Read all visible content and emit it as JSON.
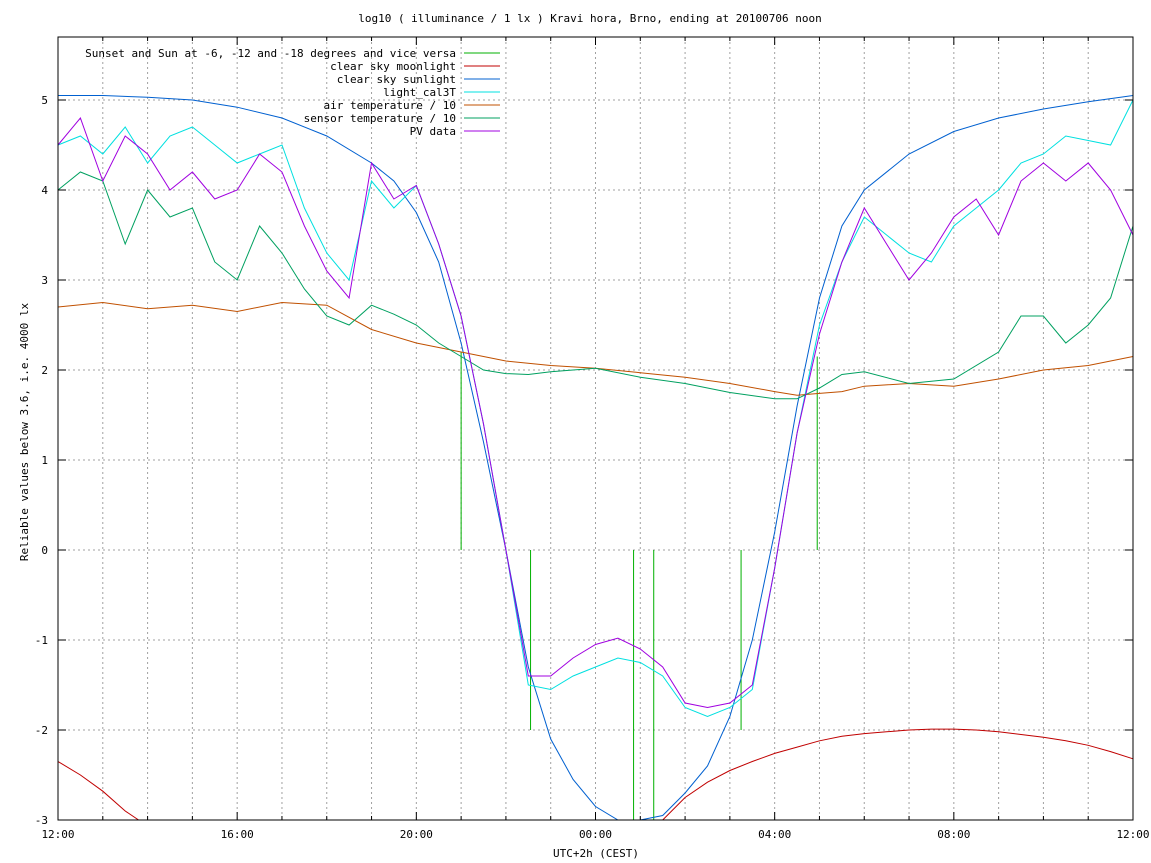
{
  "chart_data": {
    "type": "line",
    "title": "log10 ( illuminance / 1 lx ) Kravi hora, Brno, ending at 20100706 noon",
    "xlabel": "UTC+2h (CEST)",
    "ylabel": "Reliable values below 3.6, i.e. 4000 lx",
    "xlim": [
      12,
      36
    ],
    "ylim": [
      -3,
      5.7
    ],
    "x_ticks": [
      {
        "value": 12,
        "label": "12:00"
      },
      {
        "value": 16,
        "label": "16:00"
      },
      {
        "value": 20,
        "label": "20:00"
      },
      {
        "value": 24,
        "label": "00:00"
      },
      {
        "value": 28,
        "label": "04:00"
      },
      {
        "value": 32,
        "label": "08:00"
      },
      {
        "value": 36,
        "label": "12:00"
      }
    ],
    "y_ticks": [
      {
        "value": -3,
        "label": "-3"
      },
      {
        "value": -2,
        "label": "-2"
      },
      {
        "value": -1,
        "label": "-1"
      },
      {
        "value": 0,
        "label": "0"
      },
      {
        "value": 1,
        "label": "1"
      },
      {
        "value": 2,
        "label": "2"
      },
      {
        "value": 3,
        "label": "3"
      },
      {
        "value": 4,
        "label": "4"
      },
      {
        "value": 5,
        "label": "5"
      }
    ],
    "grid": true,
    "legend_position": "top-left",
    "series": [
      {
        "name": "Sunset and Sun at -6, -12 and -18 degrees and vice versa",
        "color": "#00b000",
        "style": "impulses",
        "x": [
          21.0,
          21.75,
          22.55,
          24.85,
          25.3,
          27.25,
          28.25,
          28.95
        ],
        "y": [
          2.2,
          0.0,
          -2.0,
          -3.0,
          -3.0,
          -2.0,
          0.0,
          2.15
        ]
      },
      {
        "name": "clear sky moonlight",
        "color": "#c00000",
        "style": "line",
        "x": [
          12.0,
          12.5,
          13.0,
          13.5,
          13.8,
          25.5,
          26.0,
          26.5,
          27.0,
          27.5,
          28.0,
          28.5,
          29.0,
          29.5,
          30.0,
          30.5,
          31.0,
          31.5,
          32.0,
          32.5,
          33.0,
          33.5,
          34.0,
          34.5,
          35.0,
          35.5,
          36.0
        ],
        "y": [
          -2.35,
          -2.5,
          -2.68,
          -2.9,
          -3.0,
          -3.0,
          -2.75,
          -2.58,
          -2.45,
          -2.35,
          -2.26,
          -2.19,
          -2.12,
          -2.07,
          -2.04,
          -2.02,
          -2.0,
          -1.99,
          -1.99,
          -2.0,
          -2.02,
          -2.05,
          -2.08,
          -2.12,
          -2.17,
          -2.24,
          -2.32
        ]
      },
      {
        "name": "clear sky sunlight",
        "color": "#0060d0",
        "style": "line",
        "x": [
          12.0,
          13.0,
          14.0,
          15.0,
          16.0,
          17.0,
          18.0,
          19.0,
          19.5,
          20.0,
          20.5,
          21.0,
          21.5,
          22.0,
          22.5,
          23.0,
          23.5,
          24.0,
          24.5,
          25.0,
          25.5,
          26.0,
          26.5,
          27.0,
          27.5,
          28.0,
          28.5,
          29.0,
          29.5,
          30.0,
          31.0,
          32.0,
          33.0,
          34.0,
          35.0,
          36.0
        ],
        "y": [
          5.05,
          5.05,
          5.03,
          5.0,
          4.92,
          4.8,
          4.6,
          4.3,
          4.1,
          3.75,
          3.2,
          2.3,
          1.2,
          0.0,
          -1.3,
          -2.1,
          -2.55,
          -2.85,
          -3.0,
          -3.0,
          -2.95,
          -2.7,
          -2.4,
          -1.85,
          -1.0,
          0.2,
          1.6,
          2.8,
          3.6,
          4.0,
          4.4,
          4.65,
          4.8,
          4.9,
          4.98,
          5.05
        ]
      },
      {
        "name": "light_cal3T",
        "color": "#00e0e0",
        "style": "line",
        "x": [
          12.0,
          12.5,
          13.0,
          13.5,
          14.0,
          14.5,
          15.0,
          15.5,
          16.0,
          16.5,
          17.0,
          17.5,
          18.0,
          18.5,
          19.0,
          19.5,
          20.0,
          20.5,
          21.0,
          21.5,
          22.0,
          22.5,
          23.0,
          23.5,
          24.0,
          24.5,
          25.0,
          25.5,
          26.0,
          26.5,
          27.0,
          27.5,
          28.0,
          28.5,
          29.0,
          29.5,
          30.0,
          30.5,
          31.0,
          31.5,
          32.0,
          32.5,
          33.0,
          33.5,
          34.0,
          34.5,
          35.0,
          35.5,
          36.0
        ],
        "y": [
          4.5,
          4.6,
          4.4,
          4.7,
          4.3,
          4.6,
          4.7,
          4.5,
          4.3,
          4.4,
          4.5,
          3.8,
          3.3,
          3.0,
          4.1,
          3.8,
          4.05,
          3.4,
          2.6,
          1.4,
          0.0,
          -1.5,
          -1.55,
          -1.4,
          -1.3,
          -1.2,
          -1.25,
          -1.4,
          -1.75,
          -1.85,
          -1.75,
          -1.55,
          -0.2,
          1.3,
          2.5,
          3.2,
          3.7,
          3.5,
          3.3,
          3.2,
          3.6,
          3.8,
          4.0,
          4.3,
          4.4,
          4.6,
          4.55,
          4.5,
          5.0
        ]
      },
      {
        "name": "air temperature / 10",
        "color": "#c05000",
        "style": "line",
        "x": [
          12.0,
          13.0,
          14.0,
          15.0,
          16.0,
          17.0,
          18.0,
          19.0,
          20.0,
          21.0,
          22.0,
          23.0,
          24.0,
          25.0,
          26.0,
          27.0,
          28.0,
          28.5,
          29.0,
          29.5,
          30.0,
          31.0,
          32.0,
          33.0,
          34.0,
          35.0,
          36.0
        ],
        "y": [
          2.7,
          2.75,
          2.68,
          2.72,
          2.65,
          2.75,
          2.72,
          2.45,
          2.3,
          2.2,
          2.1,
          2.05,
          2.02,
          1.97,
          1.92,
          1.85,
          1.76,
          1.72,
          1.74,
          1.76,
          1.82,
          1.85,
          1.82,
          1.9,
          2.0,
          2.05,
          2.15
        ]
      },
      {
        "name": "sensor temperature / 10",
        "color": "#00a060",
        "style": "line",
        "x": [
          12.0,
          12.5,
          13.0,
          13.5,
          14.0,
          14.5,
          15.0,
          15.5,
          16.0,
          16.5,
          17.0,
          17.5,
          18.0,
          18.5,
          19.0,
          19.5,
          20.0,
          20.5,
          21.0,
          21.5,
          22.0,
          22.5,
          23.0,
          24.0,
          25.0,
          26.0,
          27.0,
          28.0,
          28.5,
          29.0,
          29.5,
          30.0,
          31.0,
          32.0,
          33.0,
          33.5,
          34.0,
          34.5,
          35.0,
          35.5,
          36.0
        ],
        "y": [
          4.0,
          4.2,
          4.1,
          3.4,
          4.0,
          3.7,
          3.8,
          3.2,
          3.0,
          3.6,
          3.3,
          2.9,
          2.6,
          2.5,
          2.72,
          2.62,
          2.5,
          2.3,
          2.15,
          2.0,
          1.96,
          1.95,
          1.98,
          2.02,
          1.92,
          1.85,
          1.75,
          1.68,
          1.68,
          1.8,
          1.95,
          1.98,
          1.85,
          1.9,
          2.2,
          2.6,
          2.6,
          2.3,
          2.5,
          2.8,
          3.6
        ]
      },
      {
        "name": "PV data",
        "color": "#a000e0",
        "style": "line",
        "x": [
          12.0,
          12.5,
          13.0,
          13.5,
          14.0,
          14.5,
          15.0,
          15.5,
          16.0,
          16.5,
          17.0,
          17.5,
          18.0,
          18.5,
          19.0,
          19.5,
          20.0,
          20.5,
          21.0,
          21.5,
          22.0,
          22.5,
          23.0,
          23.5,
          24.0,
          24.5,
          25.0,
          25.5,
          26.0,
          26.5,
          27.0,
          27.5,
          28.0,
          28.5,
          29.0,
          29.5,
          30.0,
          30.5,
          31.0,
          31.5,
          32.0,
          32.5,
          33.0,
          33.5,
          34.0,
          34.5,
          35.0,
          35.5,
          36.0
        ],
        "y": [
          4.5,
          4.8,
          4.1,
          4.6,
          4.4,
          4.0,
          4.2,
          3.9,
          4.0,
          4.4,
          4.2,
          3.6,
          3.1,
          2.8,
          4.3,
          3.9,
          4.05,
          3.4,
          2.6,
          1.4,
          0.0,
          -1.4,
          -1.4,
          -1.2,
          -1.05,
          -0.98,
          -1.1,
          -1.3,
          -1.7,
          -1.75,
          -1.7,
          -1.5,
          -0.2,
          1.3,
          2.4,
          3.2,
          3.8,
          3.4,
          3.0,
          3.3,
          3.7,
          3.9,
          3.5,
          4.1,
          4.3,
          4.1,
          4.3,
          4.0,
          3.5
        ]
      }
    ]
  }
}
